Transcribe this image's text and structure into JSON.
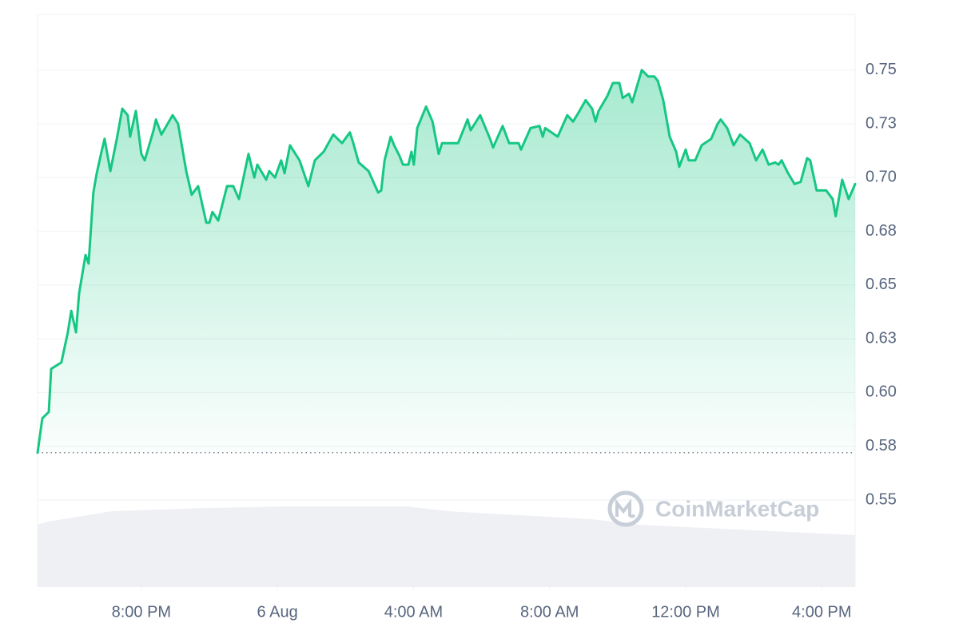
{
  "chart_data": {
    "type": "line",
    "watermark": "CoinMarketCap",
    "color": "#16c784",
    "open_value": 0.572,
    "xlim": [
      16.95,
      40.98
    ],
    "xticks": [
      {
        "value": 20,
        "label": "8:00 PM"
      },
      {
        "value": 24,
        "label": "6 Aug"
      },
      {
        "value": 28,
        "label": "4:00 AM"
      },
      {
        "value": 32,
        "label": "8:00 AM"
      },
      {
        "value": 36,
        "label": "12:00 PM"
      },
      {
        "value": 40,
        "label": "4:00 PM"
      }
    ],
    "ylim": [
      0.5095,
      0.7759
    ],
    "yticks": [
      0.55,
      {
        "value": 0.575,
        "label": "0.58"
      },
      {
        "value": 0.6,
        "label": "0.60"
      },
      {
        "value": 0.625,
        "label": "0.63"
      },
      0.65,
      {
        "value": 0.675,
        "label": "0.68"
      },
      {
        "value": 0.7,
        "label": "0.70"
      },
      {
        "value": 0.725,
        "label": "0.73"
      },
      0.75
    ],
    "grid": true,
    "x": [
      16.95,
      17.09,
      17.28,
      17.35,
      17.65,
      17.84,
      17.94,
      18.08,
      18.17,
      18.36,
      18.45,
      18.59,
      18.69,
      18.83,
      18.92,
      19.09,
      19.28,
      19.44,
      19.6,
      19.67,
      19.84,
      20.0,
      20.1,
      20.36,
      20.43,
      20.59,
      20.92,
      21.08,
      21.32,
      21.48,
      21.67,
      21.91,
      22.0,
      22.09,
      22.26,
      22.52,
      22.7,
      22.87,
      23.15,
      23.32,
      23.41,
      23.67,
      23.76,
      23.93,
      24.11,
      24.21,
      24.37,
      24.65,
      24.91,
      25.1,
      25.36,
      25.64,
      25.9,
      26.13,
      26.23,
      26.39,
      26.68,
      26.96,
      27.05,
      27.15,
      27.33,
      27.43,
      27.59,
      27.69,
      27.85,
      27.94,
      28.01,
      28.11,
      28.37,
      28.56,
      28.74,
      28.84,
      29.12,
      29.31,
      29.59,
      29.68,
      29.96,
      30.25,
      30.34,
      30.62,
      30.81,
      31.09,
      31.16,
      31.44,
      31.7,
      31.8,
      31.87,
      32.24,
      32.52,
      32.69,
      32.88,
      33.06,
      33.25,
      33.35,
      33.44,
      33.7,
      33.86,
      34.05,
      34.15,
      34.33,
      34.43,
      34.71,
      34.9,
      35.08,
      35.18,
      35.34,
      35.53,
      35.72,
      35.81,
      36.0,
      36.09,
      36.28,
      36.47,
      36.75,
      36.94,
      37.03,
      37.22,
      37.41,
      37.6,
      37.88,
      38.07,
      38.26,
      38.44,
      38.63,
      38.73,
      38.82,
      39.01,
      39.2,
      39.38,
      39.57,
      39.66,
      39.85,
      40.13,
      40.32,
      40.41,
      40.6,
      40.79,
      40.98
    ],
    "values": [
      0.572,
      0.588,
      0.591,
      0.611,
      0.614,
      0.628,
      0.638,
      0.628,
      0.646,
      0.664,
      0.66,
      0.693,
      0.702,
      0.712,
      0.718,
      0.703,
      0.718,
      0.732,
      0.729,
      0.719,
      0.731,
      0.711,
      0.708,
      0.722,
      0.727,
      0.72,
      0.729,
      0.725,
      0.703,
      0.692,
      0.696,
      0.679,
      0.679,
      0.684,
      0.68,
      0.696,
      0.696,
      0.69,
      0.711,
      0.7,
      0.706,
      0.699,
      0.703,
      0.7,
      0.708,
      0.702,
      0.715,
      0.708,
      0.696,
      0.708,
      0.712,
      0.72,
      0.716,
      0.721,
      0.716,
      0.707,
      0.703,
      0.693,
      0.694,
      0.708,
      0.719,
      0.715,
      0.71,
      0.706,
      0.706,
      0.712,
      0.706,
      0.723,
      0.733,
      0.726,
      0.711,
      0.716,
      0.716,
      0.716,
      0.727,
      0.722,
      0.729,
      0.718,
      0.714,
      0.724,
      0.716,
      0.716,
      0.713,
      0.723,
      0.724,
      0.719,
      0.723,
      0.719,
      0.729,
      0.726,
      0.731,
      0.736,
      0.732,
      0.726,
      0.731,
      0.738,
      0.744,
      0.744,
      0.737,
      0.739,
      0.735,
      0.75,
      0.747,
      0.747,
      0.745,
      0.736,
      0.719,
      0.712,
      0.705,
      0.713,
      0.708,
      0.708,
      0.715,
      0.718,
      0.725,
      0.727,
      0.723,
      0.715,
      0.72,
      0.716,
      0.708,
      0.713,
      0.706,
      0.707,
      0.706,
      0.708,
      0.702,
      0.697,
      0.698,
      0.709,
      0.708,
      0.694,
      0.694,
      0.69,
      0.682,
      0.699,
      0.69,
      0.697
    ]
  }
}
